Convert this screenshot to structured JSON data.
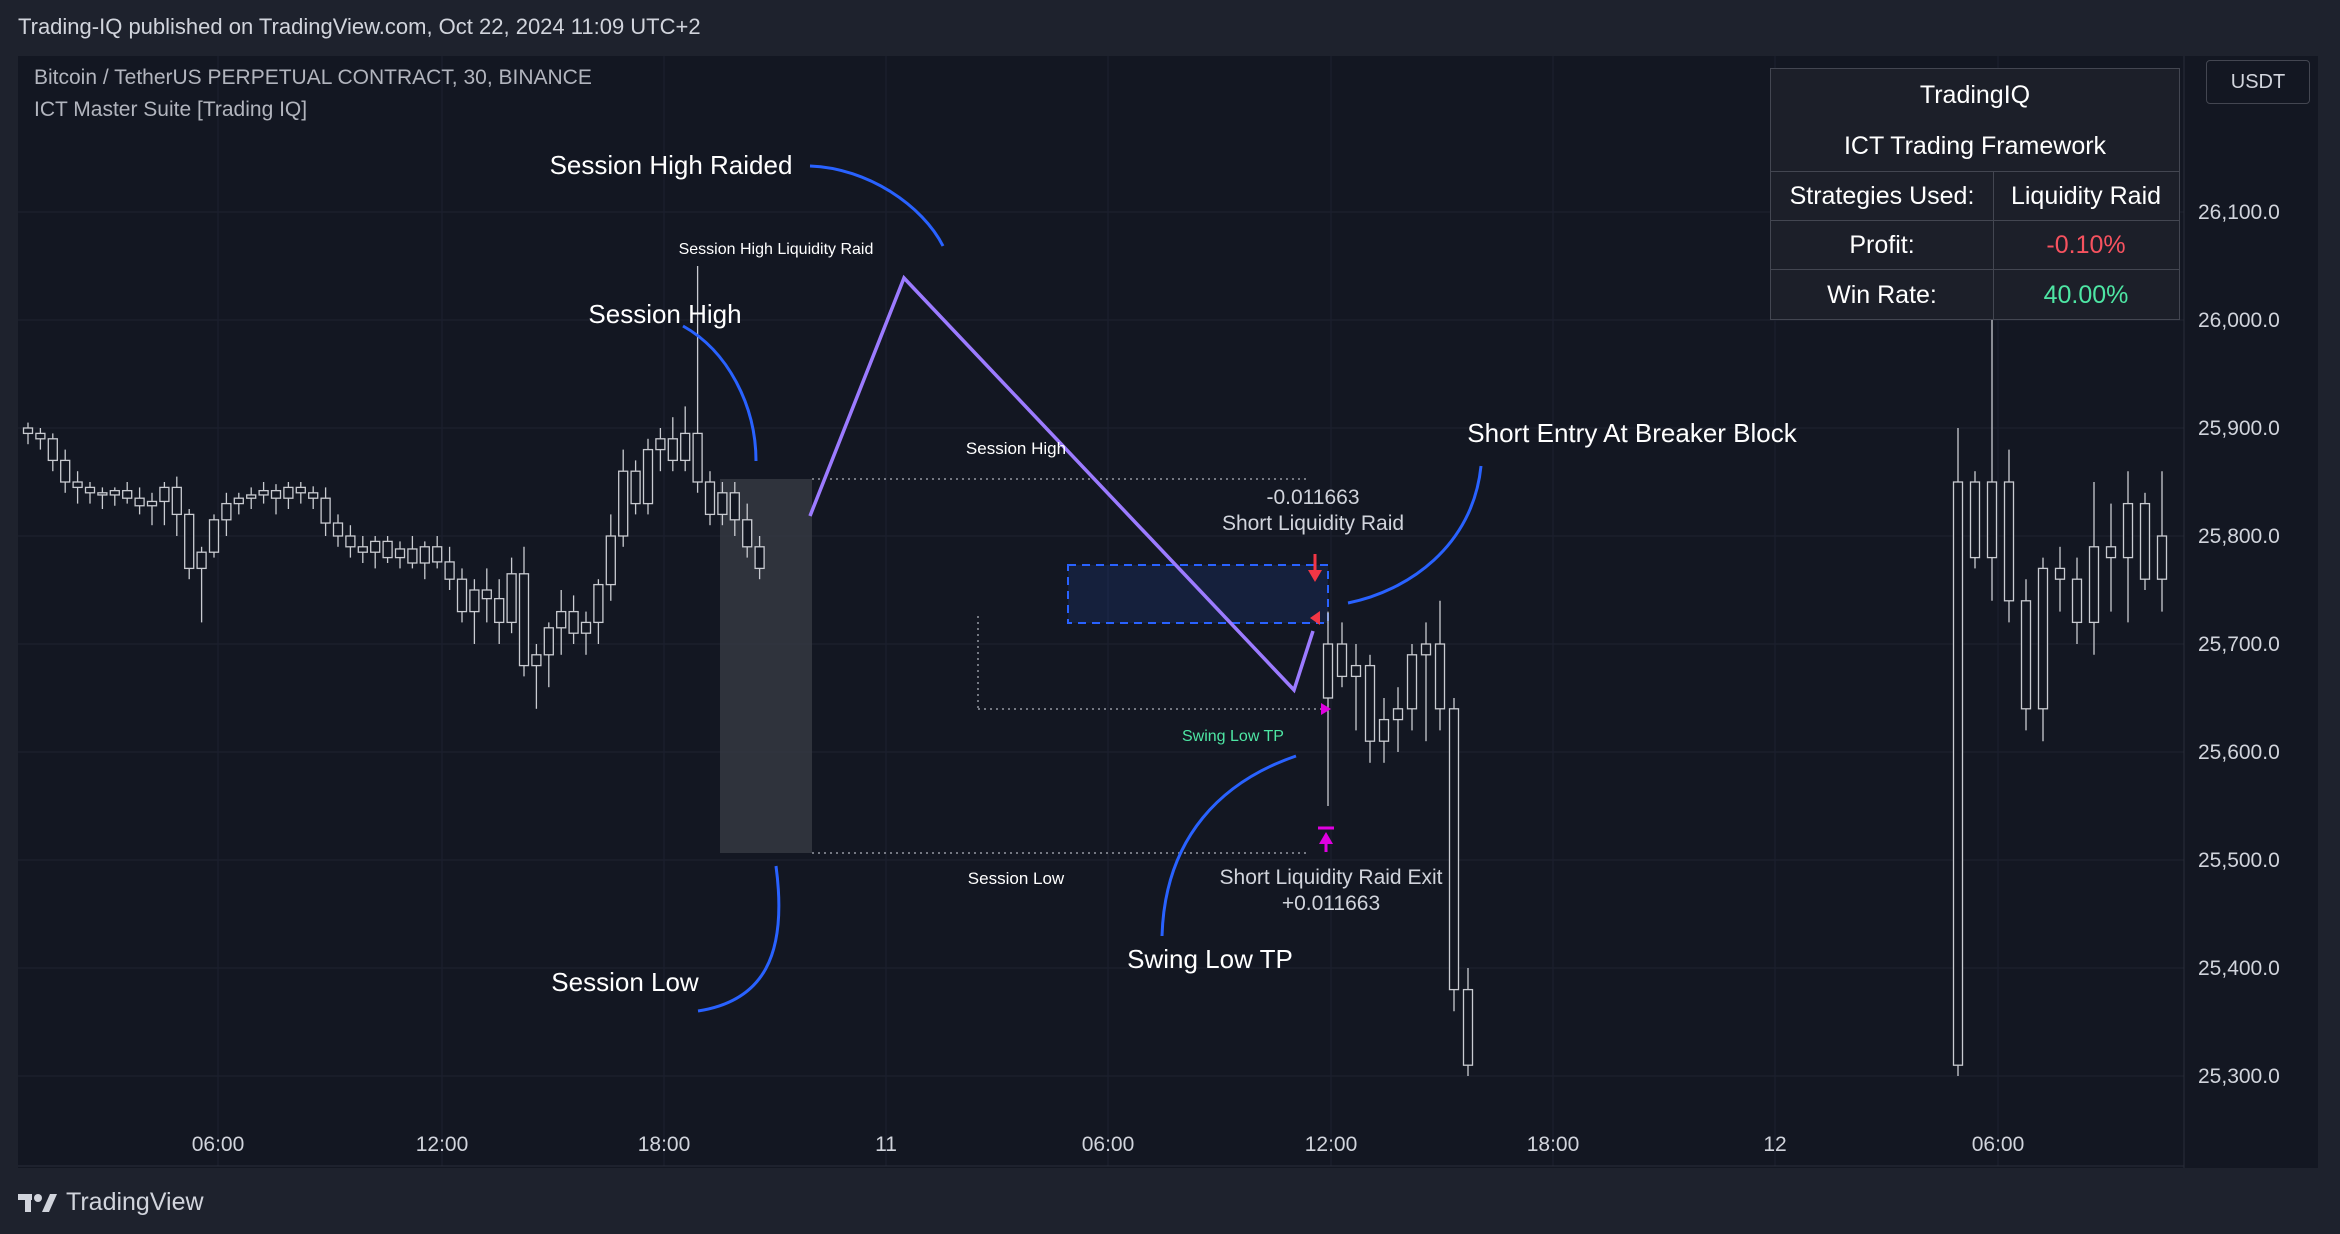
{
  "header": {
    "published": "Trading-IQ published on TradingView.com, Oct 22, 2024 11:09 UTC+2"
  },
  "legend": {
    "symbol": "Bitcoin / TetherUS PERPETUAL CONTRACT, 30, BINANCE",
    "indicator": "ICT Master Suite [Trading IQ]"
  },
  "currency": "USDT",
  "stats_table": {
    "title": "TradingIQ",
    "subtitle": "ICT Trading Framework",
    "strategies_label": "Strategies Used:",
    "strategies_value": "Liquidity Raid",
    "profit_label": "Profit:",
    "profit_value": "-0.10%",
    "winrate_label": "Win Rate:",
    "winrate_value": "40.00%"
  },
  "annotations": {
    "session_high_raided": "Session High Raided",
    "session_high": "Session High",
    "session_low": "Session Low",
    "short_entry": "Short Entry At Breaker Block",
    "swing_low_tp": "Swing Low TP"
  },
  "chart_labels": {
    "session_high_liquidity_raid": "Session High Liquidity Raid",
    "session_high_small": "Session High",
    "session_low_small": "Session Low",
    "entry_value": "-0.011663",
    "entry_label": "Short Liquidity Raid",
    "swing_low_tp_small": "Swing Low TP",
    "exit_label": "Short Liquidity Raid Exit",
    "exit_value": "+0.011663"
  },
  "colors": {
    "background": "#131722",
    "accent_blue": "#2962ff",
    "raid_line": "#9c7bff",
    "profit_red": "#f7525f",
    "winrate_green": "#4ee6a4",
    "arrow_red": "#f23645",
    "arrow_magenta": "#e000e0"
  },
  "icons": {
    "brand": "tradingview-logo-icon",
    "entry_arrow": "down-arrow-icon",
    "exit_arrow": "up-arrow-icon"
  },
  "footer": {
    "brand": "TradingView"
  },
  "chart_data": {
    "type": "candlestick",
    "symbol": "BTCUSDT.P",
    "interval": "30",
    "x_ticks": [
      "06:00",
      "12:00",
      "18:00",
      "11",
      "06:00",
      "12:00",
      "18:00",
      "12",
      "06:00"
    ],
    "y_ticks": [
      25300,
      25400,
      25500,
      25600,
      25700,
      25800,
      25900,
      26000,
      26100
    ],
    "ylim": [
      25270,
      26220
    ],
    "series": [
      {
        "name": "",
        "values": [
          [
            25900,
            25905,
            25885,
            25895
          ],
          [
            25895,
            25900,
            25880,
            25890
          ],
          [
            25890,
            25895,
            25860,
            25870
          ],
          [
            25870,
            25880,
            25840,
            25850
          ],
          [
            25850,
            25860,
            25830,
            25845
          ],
          [
            25845,
            25850,
            25830,
            25840
          ],
          [
            25840,
            25845,
            25825,
            25838
          ],
          [
            25838,
            25845,
            25828,
            25842
          ],
          [
            25842,
            25850,
            25830,
            25835
          ],
          [
            25835,
            25845,
            25820,
            25828
          ],
          [
            25828,
            25840,
            25810,
            25832
          ],
          [
            25832,
            25850,
            25810,
            25845
          ],
          [
            25845,
            25855,
            25800,
            25820
          ],
          [
            25820,
            25825,
            25760,
            25770
          ],
          [
            25770,
            25790,
            25720,
            25785
          ],
          [
            25785,
            25820,
            25780,
            25815
          ],
          [
            25815,
            25840,
            25800,
            25830
          ],
          [
            25830,
            25840,
            25820,
            25835
          ],
          [
            25835,
            25845,
            25825,
            25838
          ],
          [
            25838,
            25850,
            25830,
            25842
          ],
          [
            25842,
            25848,
            25820,
            25835
          ],
          [
            25835,
            25850,
            25825,
            25845
          ],
          [
            25845,
            25850,
            25830,
            25840
          ],
          [
            25840,
            25846,
            25825,
            25835
          ],
          [
            25835,
            25845,
            25800,
            25812
          ],
          [
            25812,
            25820,
            25790,
            25800
          ],
          [
            25800,
            25810,
            25780,
            25790
          ],
          [
            25790,
            25800,
            25775,
            25785
          ],
          [
            25785,
            25800,
            25770,
            25795
          ],
          [
            25795,
            25800,
            25775,
            25780
          ],
          [
            25780,
            25795,
            25770,
            25788
          ],
          [
            25788,
            25800,
            25770,
            25775
          ],
          [
            25775,
            25795,
            25760,
            25790
          ],
          [
            25790,
            25800,
            25770,
            25776
          ],
          [
            25776,
            25790,
            25750,
            25760
          ],
          [
            25760,
            25770,
            25720,
            25730
          ],
          [
            25730,
            25760,
            25700,
            25750
          ],
          [
            25750,
            25770,
            25720,
            25742
          ],
          [
            25742,
            25760,
            25700,
            25720
          ],
          [
            25720,
            25780,
            25710,
            25765
          ],
          [
            25765,
            25790,
            25670,
            25680
          ],
          [
            25680,
            25700,
            25640,
            25690
          ],
          [
            25690,
            25720,
            25660,
            25715
          ],
          [
            25715,
            25750,
            25690,
            25730
          ],
          [
            25730,
            25745,
            25700,
            25710
          ],
          [
            25710,
            25730,
            25690,
            25720
          ],
          [
            25720,
            25760,
            25700,
            25755
          ],
          [
            25755,
            25820,
            25740,
            25800
          ],
          [
            25800,
            25880,
            25790,
            25860
          ],
          [
            25860,
            25870,
            25820,
            25830
          ],
          [
            25830,
            25890,
            25820,
            25880
          ],
          [
            25880,
            25900,
            25860,
            25890
          ],
          [
            25890,
            25910,
            25860,
            25870
          ],
          [
            25870,
            25920,
            25860,
            25895
          ],
          [
            25895,
            26050,
            25840,
            25850
          ],
          [
            25850,
            25860,
            25810,
            25820
          ],
          [
            25820,
            25850,
            25810,
            25840
          ],
          [
            25840,
            25850,
            25800,
            25815
          ],
          [
            25815,
            25830,
            25780,
            25790
          ],
          [
            25790,
            25800,
            25760,
            25770
          ]
        ]
      }
    ],
    "session_high": 25850,
    "session_low": 25505
  }
}
